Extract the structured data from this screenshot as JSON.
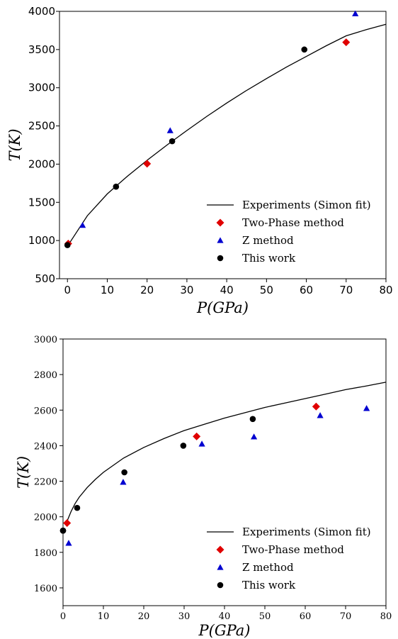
{
  "chart_data": [
    {
      "type": "scatter",
      "xlabel": "P(GPa)",
      "ylabel": "T(K)",
      "xlim": [
        -2,
        80
      ],
      "ylim": [
        500,
        4000
      ],
      "xticks": [
        "0",
        "10",
        "20",
        "30",
        "40",
        "50",
        "60",
        "70",
        "80"
      ],
      "yticks": [
        "500",
        "1000",
        "1500",
        "2000",
        "2500",
        "3000",
        "3500",
        "4000"
      ],
      "legend_position": "lower-right",
      "grid": false,
      "series": [
        {
          "name": "Experiments (Simon fit)",
          "marker": "line",
          "color": "#000000",
          "x": [
            0,
            5,
            10,
            15,
            20,
            25,
            30,
            35,
            40,
            45,
            50,
            55,
            60,
            65,
            70,
            75,
            80
          ],
          "y": [
            925,
            1325,
            1610,
            1840,
            2050,
            2250,
            2440,
            2625,
            2800,
            2965,
            3120,
            3270,
            3410,
            3550,
            3680,
            3760,
            3830
          ]
        },
        {
          "name": "Two-Phase method",
          "marker": "diamond",
          "color": "#e00000",
          "x": [
            0.2,
            20,
            70
          ],
          "y": [
            960,
            2005,
            3595
          ]
        },
        {
          "name": "Z method",
          "marker": "triangle",
          "color": "#0000d0",
          "x": [
            3.8,
            25.8,
            72.3
          ],
          "y": [
            1200,
            2440,
            3970
          ]
        },
        {
          "name": "This work",
          "marker": "circle",
          "color": "#000000",
          "x": [
            0,
            12.2,
            26.3,
            59.5
          ],
          "y": [
            940,
            1705,
            2300,
            3500
          ]
        }
      ]
    },
    {
      "type": "scatter",
      "xlabel": "P(GPa)",
      "ylabel": "T(K)",
      "xlim": [
        0,
        80
      ],
      "ylim": [
        1500,
        3000
      ],
      "xticks": [
        "0",
        "10",
        "20",
        "30",
        "40",
        "50",
        "60",
        "70",
        "80"
      ],
      "yticks": [
        "1600",
        "1800",
        "2000",
        "2200",
        "2400",
        "2600",
        "2800",
        "3000"
      ],
      "legend_position": "lower-right",
      "grid": false,
      "series": [
        {
          "name": "Experiments (Simon fit)",
          "marker": "line",
          "color": "#000000",
          "x": [
            1,
            2,
            3,
            4,
            6,
            8,
            10,
            15,
            20,
            25,
            30,
            35,
            40,
            45,
            50,
            55,
            60,
            65,
            70,
            75,
            80
          ],
          "y": [
            1975,
            2030,
            2075,
            2110,
            2165,
            2210,
            2250,
            2330,
            2390,
            2440,
            2485,
            2520,
            2555,
            2585,
            2615,
            2640,
            2665,
            2690,
            2715,
            2735,
            2757
          ]
        },
        {
          "name": "Two-Phase method",
          "marker": "diamond",
          "color": "#e00000",
          "x": [
            1,
            33.1,
            62.7
          ],
          "y": [
            1965,
            2452,
            2620
          ]
        },
        {
          "name": "Z method",
          "marker": "triangle",
          "color": "#0000d0",
          "x": [
            1.4,
            14.9,
            34.4,
            47.3,
            63.7,
            75.2
          ],
          "y": [
            1852,
            2195,
            2410,
            2450,
            2570,
            2610
          ]
        },
        {
          "name": "This work",
          "marker": "circle",
          "color": "#000000",
          "x": [
            0,
            3.5,
            15.2,
            29.8,
            47,
            0
          ],
          "y": [
            1922,
            2050,
            2250,
            2400,
            2550,
            1922
          ]
        }
      ]
    }
  ]
}
